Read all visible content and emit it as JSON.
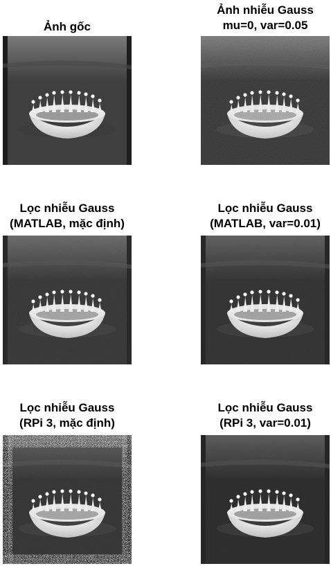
{
  "panels": [
    {
      "title_lines": [
        "Ảnh gốc"
      ]
    },
    {
      "title_lines": [
        "Ảnh nhiễu Gauss",
        "mu=0, var=0.05"
      ]
    },
    {
      "title_lines": [
        "Lọc nhiễu Gauss",
        "(MATLAB, mặc định)"
      ]
    },
    {
      "title_lines": [
        "Lọc nhiễu Gauss",
        "(MATLAB, var=0.01)"
      ]
    },
    {
      "title_lines": [
        "Lọc nhiễu Gauss",
        "(RPi 3, mặc định)"
      ]
    },
    {
      "title_lines": [
        "Lọc nhiễu Gauss",
        "(RPi 3, var=0.01)"
      ]
    }
  ]
}
